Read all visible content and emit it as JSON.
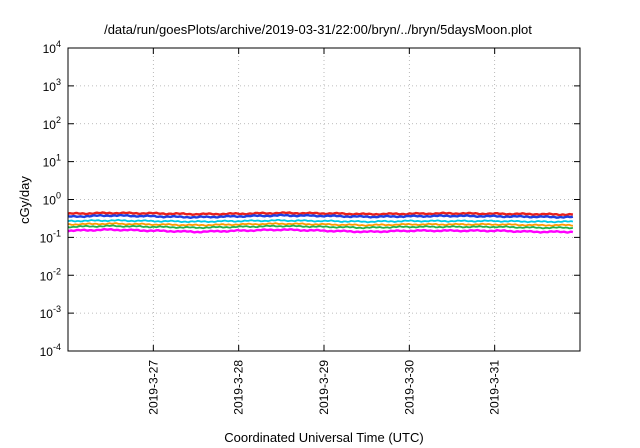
{
  "chart_data": {
    "type": "line",
    "title": "/data/run/goesPlots/archive/2019-03-31/22:00/bryn/../bryn/5daysMoon.plot",
    "xlabel": "Coordinated Universal Time (UTC)",
    "ylabel": "cGy/day",
    "yscale": "log",
    "ylim": [
      0.0001,
      10000
    ],
    "xlim": [
      "2019-03-26T00:00",
      "2019-04-01T00:00"
    ],
    "x_ticks": [
      "2019-3-27",
      "2019-3-28",
      "2019-3-29",
      "2019-3-30",
      "2019-3-31"
    ],
    "y_ticks": [
      {
        "base": "10",
        "exp": "-4"
      },
      {
        "base": "10",
        "exp": "-3"
      },
      {
        "base": "10",
        "exp": "-2"
      },
      {
        "base": "10",
        "exp": "-1"
      },
      {
        "base": "10",
        "exp": "0"
      },
      {
        "base": "10",
        "exp": "1"
      },
      {
        "base": "10",
        "exp": "2"
      },
      {
        "base": "10",
        "exp": "3"
      },
      {
        "base": "10",
        "exp": "4"
      }
    ],
    "grid": true,
    "legend": "none",
    "x": [
      "2019-03-26T00:00",
      "2019-03-26T12:00",
      "2019-03-27T00:00",
      "2019-03-27T12:00",
      "2019-03-28T00:00",
      "2019-03-28T12:00",
      "2019-03-29T00:00",
      "2019-03-29T12:00",
      "2019-03-30T00:00",
      "2019-03-30T12:00",
      "2019-03-31T00:00",
      "2019-03-31T12:00",
      "2019-03-31T22:00"
    ],
    "series": [
      {
        "color": "#e8201c",
        "values": [
          0.42,
          0.44,
          0.43,
          0.41,
          0.42,
          0.44,
          0.43,
          0.41,
          0.42,
          0.43,
          0.42,
          0.41,
          0.4
        ]
      },
      {
        "color": "#1f3fe0",
        "values": [
          0.35,
          0.38,
          0.36,
          0.34,
          0.36,
          0.38,
          0.37,
          0.35,
          0.36,
          0.37,
          0.36,
          0.35,
          0.34
        ]
      },
      {
        "color": "#00c8e6",
        "values": [
          0.27,
          0.28,
          0.27,
          0.26,
          0.27,
          0.28,
          0.27,
          0.26,
          0.27,
          0.27,
          0.27,
          0.26,
          0.26
        ]
      },
      {
        "color": "#ff9900",
        "values": [
          0.22,
          0.23,
          0.22,
          0.21,
          0.22,
          0.23,
          0.22,
          0.21,
          0.22,
          0.22,
          0.22,
          0.21,
          0.21
        ]
      },
      {
        "color": "#22b14c",
        "values": [
          0.19,
          0.2,
          0.19,
          0.18,
          0.19,
          0.2,
          0.19,
          0.18,
          0.19,
          0.19,
          0.19,
          0.18,
          0.18
        ]
      },
      {
        "color": "#ff00ff",
        "values": [
          0.15,
          0.16,
          0.15,
          0.14,
          0.15,
          0.16,
          0.15,
          0.14,
          0.15,
          0.15,
          0.15,
          0.14,
          0.14
        ]
      }
    ]
  }
}
